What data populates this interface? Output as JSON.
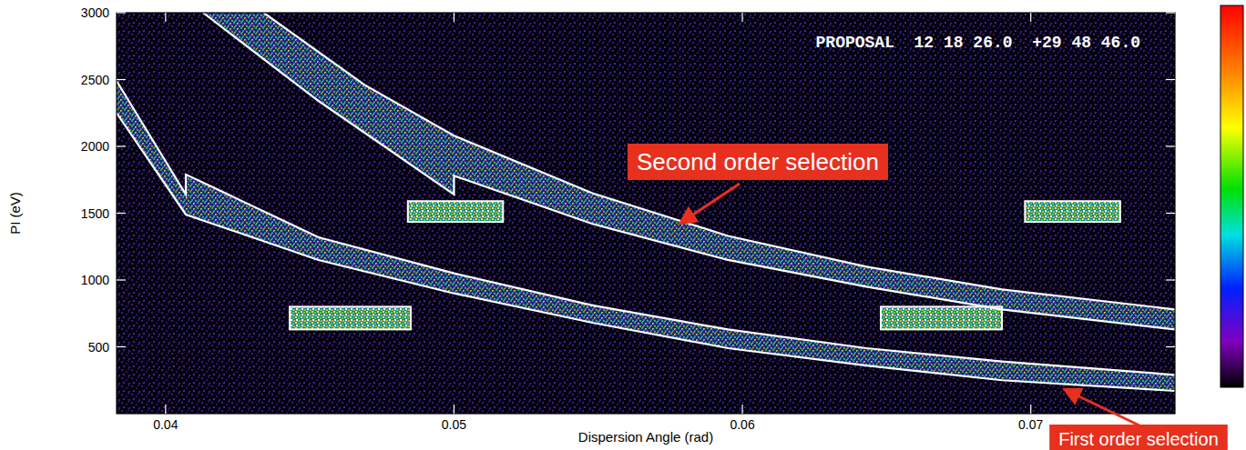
{
  "chart_data": {
    "type": "line",
    "subtitle": "PROPOSAL  12 18 26.0  +29 48 46.0",
    "x_label": "Dispersion Angle (rad)",
    "y_label": "PI (eV)",
    "xlim": [
      0.0383,
      0.075
    ],
    "ylim": [
      0,
      3000
    ],
    "xticks": [
      0.04,
      0.05,
      0.06,
      0.07
    ],
    "yticks": [
      500,
      1000,
      1500,
      2000,
      2500,
      3000
    ],
    "grid": false,
    "series": [
      {
        "color": "#ffffff",
        "x": [
          0.0383,
          0.0407,
          0.0407,
          0.0453,
          0.05,
          0.0548,
          0.0595,
          0.0643,
          0.069,
          0.075
        ],
        "values": [
          2490,
          1640,
          1790,
          1320,
          1050,
          810,
          630,
          490,
          390,
          290
        ]
      },
      {
        "color": "#ffffff",
        "x": [
          0.0383,
          0.0407,
          0.0453,
          0.05,
          0.0548,
          0.0595,
          0.0643,
          0.069,
          0.075
        ],
        "values": [
          2250,
          1490,
          1150,
          900,
          680,
          490,
          360,
          250,
          170
        ]
      },
      {
        "color": "#ffffff",
        "x": [
          0.0434,
          0.0469,
          0.05,
          0.0548,
          0.0595,
          0.0643,
          0.069,
          0.075
        ],
        "values": [
          3000,
          2460,
          2080,
          1650,
          1330,
          1100,
          930,
          780
        ]
      },
      {
        "color": "#ffffff",
        "x": [
          0.0413,
          0.0453,
          0.05,
          0.05,
          0.0548,
          0.0595,
          0.0643,
          0.069,
          0.075
        ],
        "values": [
          3000,
          2340,
          1640,
          1780,
          1420,
          1150,
          950,
          780,
          630
        ]
      }
    ],
    "boxes": [
      {
        "x": [
          0.0443,
          0.0485
        ],
        "y": [
          630,
          800
        ]
      },
      {
        "x": [
          0.0484,
          0.0517
        ],
        "y": [
          1435,
          1590
        ]
      },
      {
        "x": [
          0.0648,
          0.069
        ],
        "y": [
          630,
          800
        ]
      },
      {
        "x": [
          0.0698,
          0.0731
        ],
        "y": [
          1435,
          1590
        ]
      }
    ],
    "annotations": [
      "Second order selection",
      "First order selection"
    ]
  }
}
